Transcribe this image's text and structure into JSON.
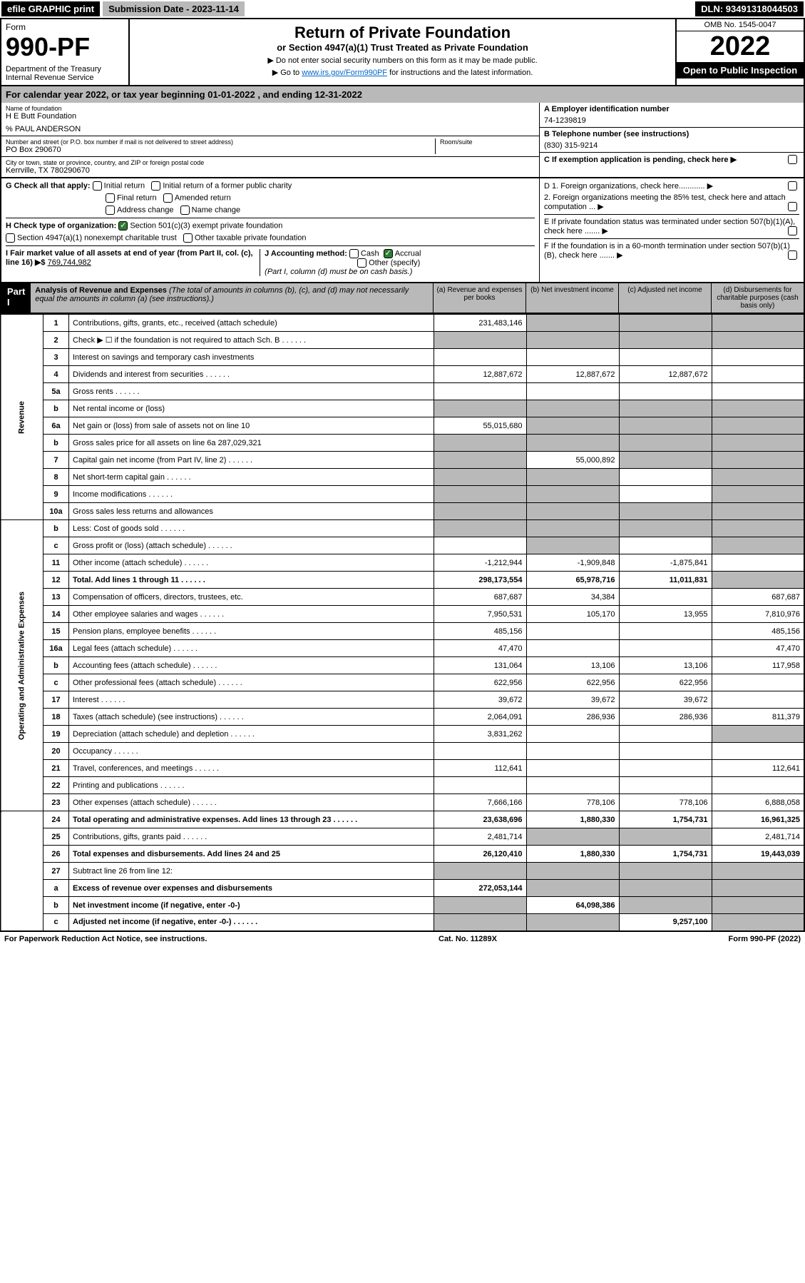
{
  "topbar": {
    "efile": "efile GRAPHIC print",
    "submission": "Submission Date - 2023-11-14",
    "dln": "DLN: 93491318044503"
  },
  "header": {
    "form_label": "Form",
    "form_number": "990-PF",
    "dept": "Department of the Treasury",
    "irs": "Internal Revenue Service",
    "title": "Return of Private Foundation",
    "subtitle": "or Section 4947(a)(1) Trust Treated as Private Foundation",
    "instr1": "▶ Do not enter social security numbers on this form as it may be made public.",
    "instr2_pre": "▶ Go to ",
    "instr2_link": "www.irs.gov/Form990PF",
    "instr2_post": " for instructions and the latest information.",
    "omb": "OMB No. 1545-0047",
    "year": "2022",
    "open": "Open to Public Inspection"
  },
  "calyear": "For calendar year 2022, or tax year beginning 01-01-2022            , and ending 12-31-2022",
  "info": {
    "name_label": "Name of foundation",
    "name": "H E Butt Foundation",
    "care_of": "% PAUL ANDERSON",
    "addr_label": "Number and street (or P.O. box number if mail is not delivered to street address)",
    "addr": "PO Box 290670",
    "room_label": "Room/suite",
    "city_label": "City or town, state or province, country, and ZIP or foreign postal code",
    "city": "Kerrville, TX  780290670",
    "ein_label": "A Employer identification number",
    "ein": "74-1239819",
    "phone_label": "B  Telephone number (see instructions)",
    "phone": "(830) 315-9214",
    "pending": "C  If exemption application is pending, check here  ▶"
  },
  "checks": {
    "G": "G  Check all that apply:",
    "g_opts": [
      "Initial return",
      "Initial return of a former public charity",
      "Final return",
      "Amended return",
      "Address change",
      "Name change"
    ],
    "H": "H Check type of organization:",
    "h_opts": [
      "Section 501(c)(3) exempt private foundation",
      "Section 4947(a)(1) nonexempt charitable trust",
      "Other taxable private foundation"
    ],
    "I_label": "I Fair market value of all assets at end of year (from Part II, col. (c), line 16) ▶$",
    "I_val": "769,744,982",
    "J_label": "J Accounting method:",
    "j_opts": [
      "Cash",
      "Accrual",
      "Other (specify)"
    ],
    "J_note": "(Part I, column (d) must be on cash basis.)",
    "D1": "D 1. Foreign organizations, check here............  ▶",
    "D2": "2. Foreign organizations meeting the 85% test, check here and attach computation ...  ▶",
    "E": "E  If private foundation status was terminated under section 507(b)(1)(A), check here .......  ▶",
    "F": "F  If the foundation is in a 60-month termination under section 507(b)(1)(B), check here .......  ▶"
  },
  "part1": {
    "label": "Part I",
    "title": "Analysis of Revenue and Expenses",
    "title_note": "(The total of amounts in columns (b), (c), and (d) may not necessarily equal the amounts in column (a) (see instructions).)",
    "cols": {
      "a": "(a)  Revenue and expenses per books",
      "b": "(b)  Net investment income",
      "c": "(c)  Adjusted net income",
      "d": "(d)  Disbursements for charitable purposes (cash basis only)"
    }
  },
  "sections": {
    "revenue": "Revenue",
    "oae": "Operating and Administrative Expenses"
  },
  "rows": [
    {
      "ln": "1",
      "desc": "Contributions, gifts, grants, etc., received (attach schedule)",
      "a": "231,483,146",
      "sh": [
        "b",
        "c",
        "d"
      ]
    },
    {
      "ln": "2",
      "desc": "Check ▶ ☐ if the foundation is not required to attach Sch. B",
      "dots": true,
      "sh": [
        "a",
        "b",
        "c",
        "d"
      ]
    },
    {
      "ln": "3",
      "desc": "Interest on savings and temporary cash investments"
    },
    {
      "ln": "4",
      "desc": "Dividends and interest from securities",
      "dots": true,
      "a": "12,887,672",
      "b": "12,887,672",
      "c": "12,887,672"
    },
    {
      "ln": "5a",
      "desc": "Gross rents",
      "dots": true
    },
    {
      "ln": "b",
      "desc": "Net rental income or (loss)",
      "sh": [
        "a",
        "b",
        "c",
        "d"
      ]
    },
    {
      "ln": "6a",
      "desc": "Net gain or (loss) from sale of assets not on line 10",
      "a": "55,015,680",
      "sh": [
        "b",
        "c",
        "d"
      ]
    },
    {
      "ln": "b",
      "desc": "Gross sales price for all assets on line 6a  287,029,321",
      "sh": [
        "a",
        "b",
        "c",
        "d"
      ]
    },
    {
      "ln": "7",
      "desc": "Capital gain net income (from Part IV, line 2)",
      "dots": true,
      "b": "55,000,892",
      "sh": [
        "a",
        "c",
        "d"
      ]
    },
    {
      "ln": "8",
      "desc": "Net short-term capital gain",
      "dots": true,
      "sh": [
        "a",
        "b",
        "d"
      ]
    },
    {
      "ln": "9",
      "desc": "Income modifications",
      "dots": true,
      "sh": [
        "a",
        "b",
        "d"
      ]
    },
    {
      "ln": "10a",
      "desc": "Gross sales less returns and allowances",
      "sh": [
        "a",
        "b",
        "c",
        "d"
      ]
    },
    {
      "ln": "b",
      "desc": "Less: Cost of goods sold",
      "dots": true,
      "sh": [
        "a",
        "b",
        "c",
        "d"
      ]
    },
    {
      "ln": "c",
      "desc": "Gross profit or (loss) (attach schedule)",
      "dots": true,
      "sh": [
        "b",
        "d"
      ]
    },
    {
      "ln": "11",
      "desc": "Other income (attach schedule)",
      "dots": true,
      "a": "-1,212,944",
      "b": "-1,909,848",
      "c": "-1,875,841"
    },
    {
      "ln": "12",
      "desc": "Total. Add lines 1 through 11",
      "dots": true,
      "bold": true,
      "a": "298,173,554",
      "b": "65,978,716",
      "c": "11,011,831",
      "sh": [
        "d"
      ]
    },
    {
      "ln": "13",
      "desc": "Compensation of officers, directors, trustees, etc.",
      "a": "687,687",
      "b": "34,384",
      "d": "687,687"
    },
    {
      "ln": "14",
      "desc": "Other employee salaries and wages",
      "dots": true,
      "a": "7,950,531",
      "b": "105,170",
      "c": "13,955",
      "d": "7,810,976"
    },
    {
      "ln": "15",
      "desc": "Pension plans, employee benefits",
      "dots": true,
      "a": "485,156",
      "d": "485,156"
    },
    {
      "ln": "16a",
      "desc": "Legal fees (attach schedule)",
      "dots": true,
      "a": "47,470",
      "d": "47,470"
    },
    {
      "ln": "b",
      "desc": "Accounting fees (attach schedule)",
      "dots": true,
      "a": "131,064",
      "b": "13,106",
      "c": "13,106",
      "d": "117,958"
    },
    {
      "ln": "c",
      "desc": "Other professional fees (attach schedule)",
      "dots": true,
      "a": "622,956",
      "b": "622,956",
      "c": "622,956"
    },
    {
      "ln": "17",
      "desc": "Interest",
      "dots": true,
      "a": "39,672",
      "b": "39,672",
      "c": "39,672"
    },
    {
      "ln": "18",
      "desc": "Taxes (attach schedule) (see instructions)",
      "dots": true,
      "a": "2,064,091",
      "b": "286,936",
      "c": "286,936",
      "d": "811,379"
    },
    {
      "ln": "19",
      "desc": "Depreciation (attach schedule) and depletion",
      "dots": true,
      "a": "3,831,262",
      "sh": [
        "d"
      ]
    },
    {
      "ln": "20",
      "desc": "Occupancy",
      "dots": true
    },
    {
      "ln": "21",
      "desc": "Travel, conferences, and meetings",
      "dots": true,
      "a": "112,641",
      "d": "112,641"
    },
    {
      "ln": "22",
      "desc": "Printing and publications",
      "dots": true
    },
    {
      "ln": "23",
      "desc": "Other expenses (attach schedule)",
      "dots": true,
      "a": "7,666,166",
      "b": "778,106",
      "c": "778,106",
      "d": "6,888,058"
    },
    {
      "ln": "24",
      "desc": "Total operating and administrative expenses. Add lines 13 through 23",
      "dots": true,
      "bold": true,
      "a": "23,638,696",
      "b": "1,880,330",
      "c": "1,754,731",
      "d": "16,961,325"
    },
    {
      "ln": "25",
      "desc": "Contributions, gifts, grants paid",
      "dots": true,
      "a": "2,481,714",
      "sh": [
        "b",
        "c"
      ],
      "d": "2,481,714"
    },
    {
      "ln": "26",
      "desc": "Total expenses and disbursements. Add lines 24 and 25",
      "bold": true,
      "a": "26,120,410",
      "b": "1,880,330",
      "c": "1,754,731",
      "d": "19,443,039"
    },
    {
      "ln": "27",
      "desc": "Subtract line 26 from line 12:",
      "sh": [
        "a",
        "b",
        "c",
        "d"
      ]
    },
    {
      "ln": "a",
      "desc": "Excess of revenue over expenses and disbursements",
      "bold": true,
      "a": "272,053,144",
      "sh": [
        "b",
        "c",
        "d"
      ]
    },
    {
      "ln": "b",
      "desc": "Net investment income (if negative, enter -0-)",
      "bold": true,
      "b": "64,098,386",
      "sh": [
        "a",
        "c",
        "d"
      ]
    },
    {
      "ln": "c",
      "desc": "Adjusted net income (if negative, enter -0-)",
      "dots": true,
      "bold": true,
      "c": "9,257,100",
      "sh": [
        "a",
        "b",
        "d"
      ]
    }
  ],
  "footer": {
    "left": "For Paperwork Reduction Act Notice, see instructions.",
    "mid": "Cat. No. 11289X",
    "right": "Form 990-PF (2022)"
  }
}
